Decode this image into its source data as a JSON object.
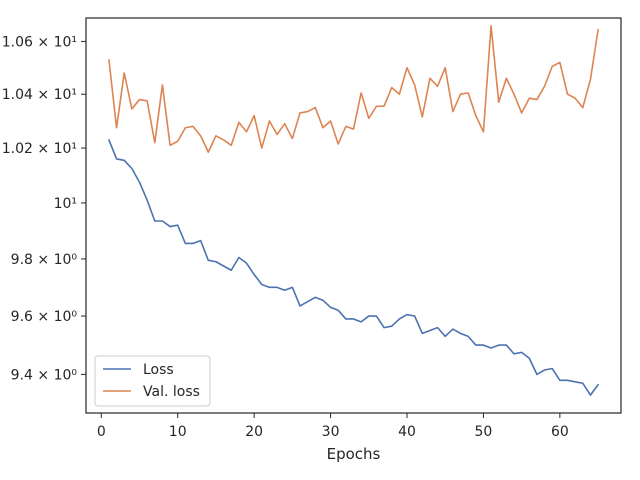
{
  "chart_data": {
    "type": "line",
    "xlabel": "Epochs",
    "ylabel": "",
    "y_scale": "log",
    "xlim": [
      -2,
      68
    ],
    "ylim": [
      9.27,
      10.69
    ],
    "grid": false,
    "legend_position": "lower-left",
    "x_ticks": [
      0,
      10,
      20,
      30,
      40,
      50,
      60
    ],
    "y_ticks": [
      {
        "value": 9.4,
        "label": "9.4 × 10⁰"
      },
      {
        "value": 9.6,
        "label": "9.6 × 10⁰"
      },
      {
        "value": 9.8,
        "label": "9.8 × 10⁰"
      },
      {
        "value": 10.0,
        "label": "10¹"
      },
      {
        "value": 10.2,
        "label": "1.02 × 10¹"
      },
      {
        "value": 10.4,
        "label": "1.04 × 10¹"
      },
      {
        "value": 10.6,
        "label": "1.06 × 10¹"
      }
    ],
    "x": [
      1,
      2,
      3,
      4,
      5,
      6,
      7,
      8,
      9,
      10,
      11,
      12,
      13,
      14,
      15,
      16,
      17,
      18,
      19,
      20,
      21,
      22,
      23,
      24,
      25,
      26,
      27,
      28,
      29,
      30,
      31,
      32,
      33,
      34,
      35,
      36,
      37,
      38,
      39,
      40,
      41,
      42,
      43,
      44,
      45,
      46,
      47,
      48,
      49,
      50,
      51,
      52,
      53,
      54,
      55,
      56,
      57,
      58,
      59,
      60,
      61,
      62,
      63,
      64,
      65
    ],
    "series": [
      {
        "name": "Loss",
        "color": "#4c72b0",
        "values": [
          10.23,
          10.16,
          10.155,
          10.125,
          10.075,
          10.01,
          9.935,
          9.935,
          9.915,
          9.92,
          9.855,
          9.855,
          9.865,
          9.795,
          9.79,
          9.775,
          9.76,
          9.805,
          9.785,
          9.745,
          9.71,
          9.7,
          9.7,
          9.69,
          9.7,
          9.635,
          9.65,
          9.665,
          9.655,
          9.63,
          9.62,
          9.59,
          9.59,
          9.58,
          9.6,
          9.6,
          9.56,
          9.565,
          9.59,
          9.605,
          9.6,
          9.54,
          9.55,
          9.56,
          9.53,
          9.555,
          9.54,
          9.53,
          9.5,
          9.5,
          9.49,
          9.5,
          9.5,
          9.47,
          9.475,
          9.455,
          9.4,
          9.415,
          9.42,
          9.38,
          9.38,
          9.375,
          9.37,
          9.33,
          9.365
        ]
      },
      {
        "name": "Val. loss",
        "color": "#dd8452",
        "values": [
          10.53,
          10.275,
          10.48,
          10.345,
          10.38,
          10.375,
          10.22,
          10.435,
          10.21,
          10.225,
          10.275,
          10.28,
          10.245,
          10.185,
          10.245,
          10.23,
          10.21,
          10.295,
          10.26,
          10.32,
          10.2,
          10.3,
          10.25,
          10.29,
          10.235,
          10.33,
          10.335,
          10.35,
          10.275,
          10.3,
          10.215,
          10.28,
          10.27,
          10.405,
          10.31,
          10.355,
          10.355,
          10.425,
          10.4,
          10.5,
          10.435,
          10.315,
          10.46,
          10.43,
          10.5,
          10.335,
          10.4,
          10.405,
          10.32,
          10.26,
          10.66,
          10.37,
          10.46,
          10.4,
          10.33,
          10.385,
          10.38,
          10.43,
          10.505,
          10.52,
          10.4,
          10.385,
          10.35,
          10.455,
          10.645
        ]
      }
    ]
  }
}
